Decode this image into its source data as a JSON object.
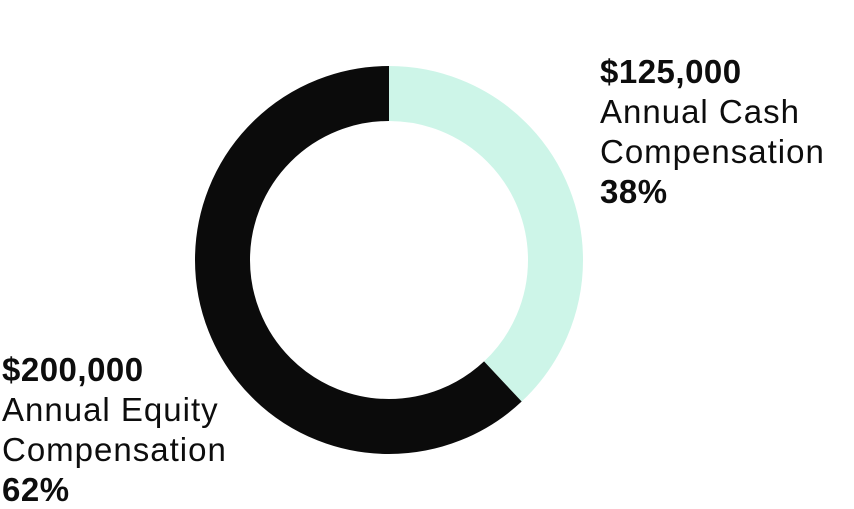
{
  "chart_data": {
    "type": "pie",
    "subtype": "donut",
    "direction": "clockwise",
    "start_angle_deg": 0,
    "background_color": "#ffffff",
    "slices": [
      {
        "label": "Annual Cash Compensation",
        "amount": "$125,000",
        "percent": 38,
        "color": "#cdf5e8"
      },
      {
        "label": "Annual Equity Compensation",
        "amount": "$200,000",
        "percent": 62,
        "color": "#0b0b0b"
      }
    ],
    "legend_position": "labels-beside-chart"
  },
  "labels": {
    "cash": {
      "amount": "$125,000",
      "name_line1": "Annual Cash",
      "name_line2": "Compensation",
      "percent": "38%"
    },
    "equity": {
      "amount": "$200,000",
      "name_line1": "Annual Equity",
      "name_line2": "Compensation",
      "percent": "62%"
    }
  },
  "colors": {
    "text": "#0d0d0d",
    "cash_slice": "#cdf5e8",
    "equity_slice": "#0b0b0b"
  }
}
